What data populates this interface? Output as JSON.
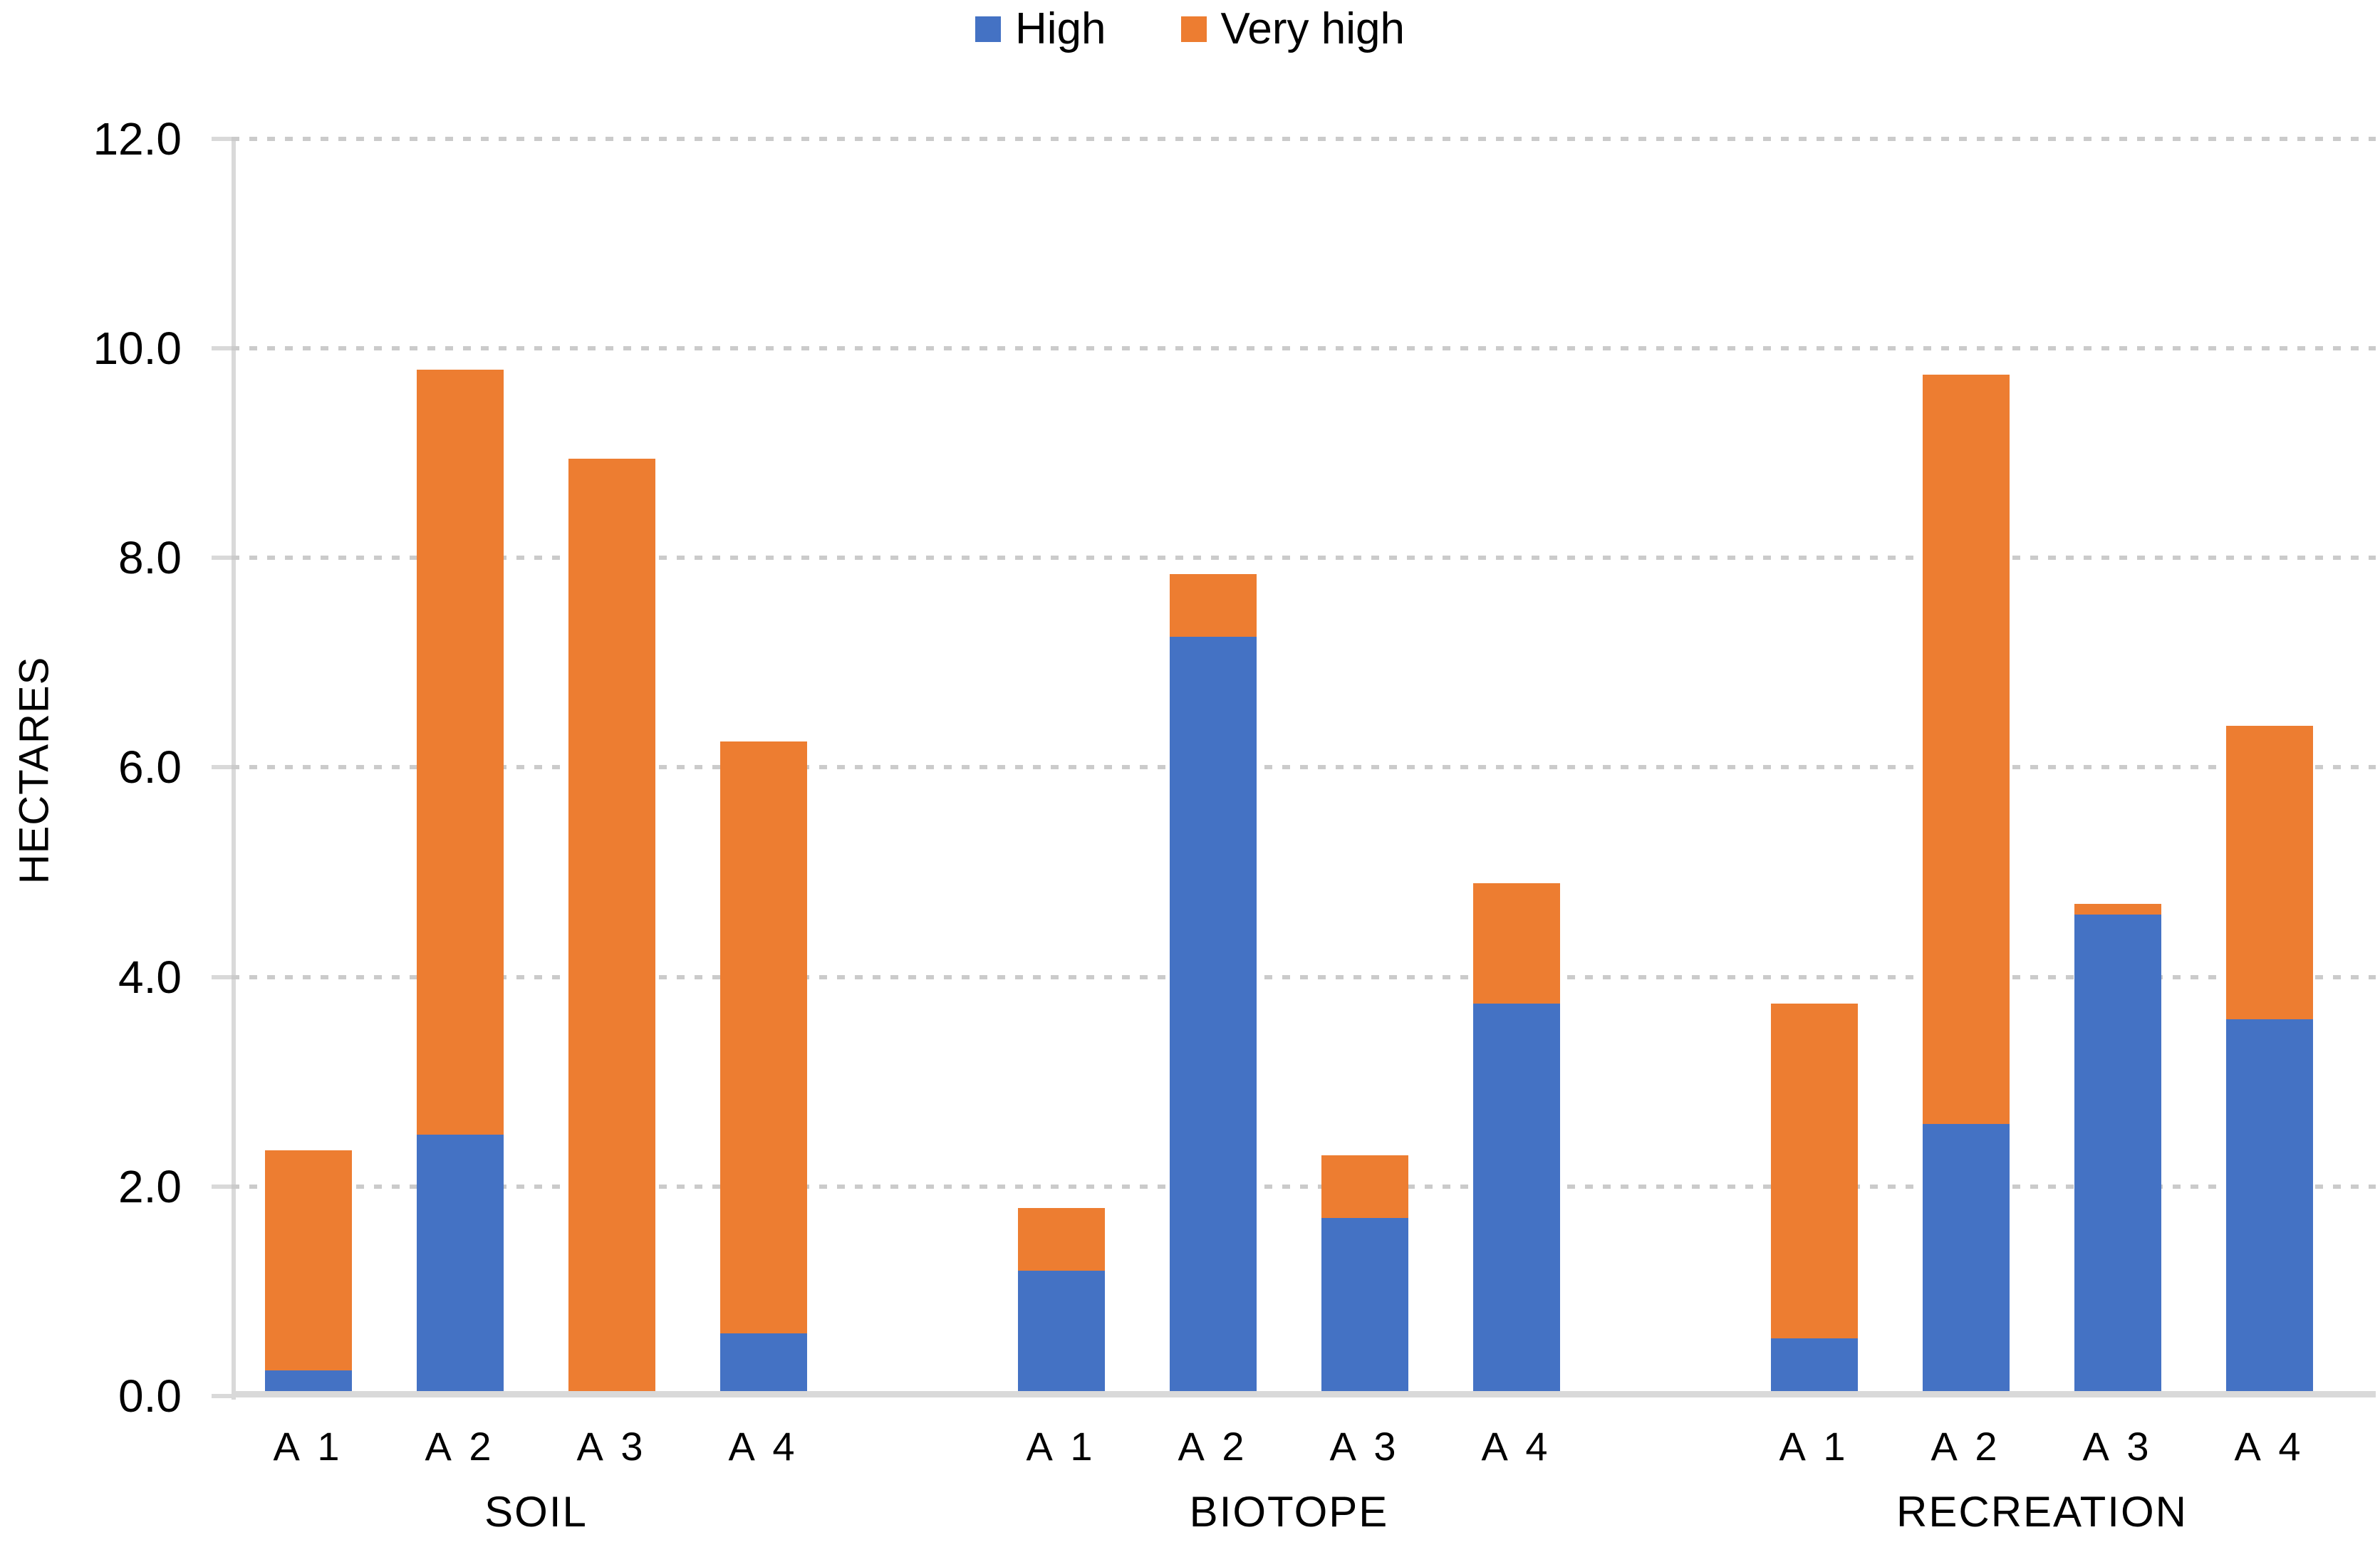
{
  "chart_data": {
    "type": "bar",
    "stacked": true,
    "orientation": "vertical",
    "ylabel": "HECTARES",
    "ylim": [
      0,
      12
    ],
    "ytick_step": 2,
    "ytick_labels": [
      "12.0",
      "10.0",
      "8.0",
      "6.0",
      "4.0",
      "2.0",
      "0.0"
    ],
    "grid": "horizontal-dotted",
    "legend_position": "top-center",
    "series_names": [
      "High",
      "Very high"
    ],
    "colors": {
      "high": "#4472C4",
      "very_high": "#ED7D31",
      "axis_line": "#D9D9D9",
      "gridline": "#CBCBCB",
      "text": "#000000",
      "background": "#FFFFFF"
    },
    "groups": [
      {
        "label": "SOIL",
        "categories": [
          "A 1",
          "A 2",
          "A 3",
          "A 4"
        ],
        "series": [
          {
            "name": "High",
            "values": [
              0.2,
              2.45,
              0.0,
              0.55
            ]
          },
          {
            "name": "Very high",
            "values": [
              2.1,
              7.3,
              8.9,
              5.65
            ]
          }
        ],
        "totals": [
          2.3,
          9.75,
          8.9,
          6.2
        ]
      },
      {
        "label": "BIOTOPE",
        "categories": [
          "A 1",
          "A 2",
          "A 3",
          "A 4"
        ],
        "series": [
          {
            "name": "High",
            "values": [
              1.15,
              7.2,
              1.65,
              3.7
            ]
          },
          {
            "name": "Very high",
            "values": [
              0.6,
              0.6,
              0.6,
              1.15
            ]
          }
        ],
        "totals": [
          1.75,
          7.8,
          2.25,
          4.85
        ]
      },
      {
        "label": "RECREATION",
        "categories": [
          "A 1",
          "A 2",
          "A 3",
          "A 4"
        ],
        "series": [
          {
            "name": "High",
            "values": [
              0.5,
              2.55,
              4.55,
              3.55
            ]
          },
          {
            "name": "Very high",
            "values": [
              3.2,
              7.15,
              0.1,
              2.8
            ]
          }
        ],
        "totals": [
          3.7,
          9.7,
          4.65,
          6.35
        ]
      }
    ]
  }
}
